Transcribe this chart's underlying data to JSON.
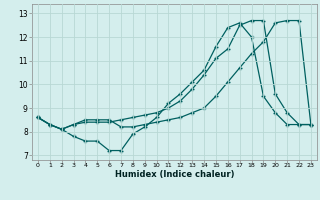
{
  "xlabel": "Humidex (Indice chaleur)",
  "background_color": "#d4eeed",
  "grid_color": "#b8d8d4",
  "line_color": "#006060",
  "xlim": [
    -0.5,
    23.5
  ],
  "ylim": [
    6.8,
    13.4
  ],
  "yticks": [
    7,
    8,
    9,
    10,
    11,
    12,
    13
  ],
  "xticks": [
    0,
    1,
    2,
    3,
    4,
    5,
    6,
    7,
    8,
    9,
    10,
    11,
    12,
    13,
    14,
    15,
    16,
    17,
    18,
    19,
    20,
    21,
    22,
    23
  ],
  "series1_y": [
    8.6,
    8.3,
    8.1,
    8.3,
    8.4,
    8.4,
    8.4,
    8.5,
    8.6,
    8.7,
    8.8,
    9.0,
    9.3,
    9.8,
    10.4,
    11.1,
    11.5,
    12.5,
    12.7,
    12.7,
    9.6,
    8.8,
    8.3,
    8.3
  ],
  "series2_y": [
    8.6,
    8.3,
    8.1,
    7.8,
    7.6,
    7.6,
    7.2,
    7.2,
    7.9,
    8.2,
    8.6,
    9.2,
    9.6,
    10.1,
    10.6,
    11.6,
    12.4,
    12.6,
    12.0,
    9.5,
    8.8,
    8.3,
    8.3,
    8.3
  ],
  "series3_y": [
    8.6,
    8.3,
    8.1,
    8.3,
    8.5,
    8.5,
    8.5,
    8.2,
    8.2,
    8.3,
    8.4,
    8.5,
    8.6,
    8.8,
    9.0,
    9.5,
    10.1,
    10.7,
    11.3,
    11.8,
    12.6,
    12.7,
    12.7,
    8.3
  ]
}
